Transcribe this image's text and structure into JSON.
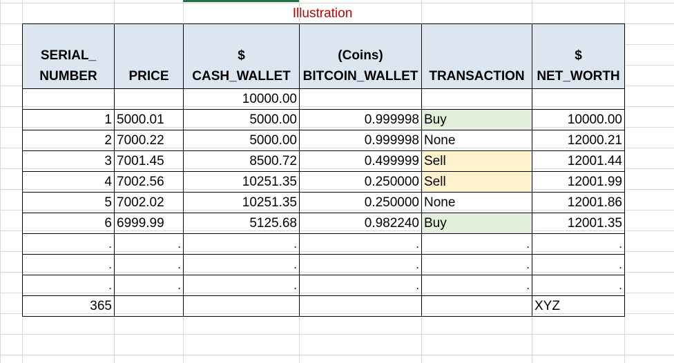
{
  "title": "Illustration",
  "headers": {
    "serial": [
      "SERIAL_",
      "NUMBER"
    ],
    "price": [
      "",
      "PRICE"
    ],
    "cash": [
      "$",
      "CASH_WALLET"
    ],
    "bitcoin": [
      "(Coins)",
      "BITCOIN_WALLET"
    ],
    "transaction": [
      "",
      "TRANSACTION"
    ],
    "networth": [
      "$",
      "NET_WORTH"
    ]
  },
  "initial_row": {
    "serial": "",
    "price": "",
    "cash": "10000.00",
    "bitcoin": "",
    "transaction": "",
    "networth": ""
  },
  "rows": [
    {
      "serial": "1",
      "price": "5000.01",
      "cash": "5000.00",
      "bitcoin": "0.999998",
      "transaction": "Buy",
      "networth": "10000.00"
    },
    {
      "serial": "2",
      "price": "7000.22",
      "cash": "5000.00",
      "bitcoin": "0.999998",
      "transaction": "None",
      "networth": "12000.21"
    },
    {
      "serial": "3",
      "price": "7001.45",
      "cash": "8500.72",
      "bitcoin": "0.499999",
      "transaction": "Sell",
      "networth": "12001.44"
    },
    {
      "serial": "4",
      "price": "7002.56",
      "cash": "10251.35",
      "bitcoin": "0.250000",
      "transaction": "Sell",
      "networth": "12001.99"
    },
    {
      "serial": "5",
      "price": "7002.02",
      "cash": "10251.35",
      "bitcoin": "0.250000",
      "transaction": "None",
      "networth": "12001.86"
    },
    {
      "serial": "6",
      "price": "6999.99",
      "cash": "5125.68",
      "bitcoin": "0.982240",
      "transaction": "Buy",
      "networth": "12001.35"
    }
  ],
  "ellipsis_rows": 3,
  "ellipsis_char": ".",
  "final_row": {
    "serial": "365",
    "price": "",
    "cash": "",
    "bitcoin": "",
    "transaction": "",
    "networth": "XYZ"
  },
  "colors": {
    "header_bg": "#dce6f1",
    "buy_bg": "#e2efda",
    "sell_bg": "#fff2cc",
    "title": "#c00000"
  }
}
